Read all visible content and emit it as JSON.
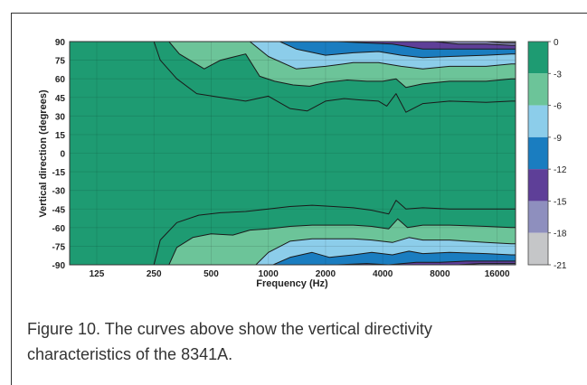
{
  "chart_data": {
    "type": "contour",
    "xlabel": "Frequency (Hz)",
    "ylabel": "Vertical direction (degrees)",
    "x_ticks": [
      "125",
      "250",
      "500",
      "1000",
      "2000",
      "4000",
      "8000",
      "16000"
    ],
    "x_tick_values": [
      125,
      250,
      500,
      1000,
      2000,
      4000,
      8000,
      16000
    ],
    "xlim": [
      90,
      20000
    ],
    "x_scale": "log",
    "y_ticks": [
      "90",
      "75",
      "60",
      "45",
      "30",
      "15",
      "0",
      "-15",
      "-30",
      "-45",
      "-60",
      "-75",
      "-90"
    ],
    "y_tick_values": [
      90,
      75,
      60,
      45,
      30,
      15,
      0,
      -15,
      -30,
      -45,
      -60,
      -75,
      -90
    ],
    "ylim": [
      -90,
      90
    ],
    "grid": true,
    "colorbar": {
      "ticks": [
        "0",
        "-3",
        "-6",
        "-9",
        "-12",
        "-15",
        "-18",
        "-21"
      ],
      "levels": [
        0,
        -3,
        -6,
        -9,
        -12,
        -15,
        -18,
        -21
      ],
      "colors": [
        "#1e9b72",
        "#6cc499",
        "#8ccdea",
        "#1a7dc0",
        "#5e3f98",
        "#8e8fbe",
        "#c5c6c8"
      ]
    },
    "contours": {
      "upper": [
        {
          "level": -3,
          "points": [
            [
              250,
              90
            ],
            [
              270,
              75
            ],
            [
              330,
              60
            ],
            [
              420,
              48
            ],
            [
              560,
              45
            ],
            [
              760,
              42
            ],
            [
              1000,
              46
            ],
            [
              1300,
              36
            ],
            [
              1600,
              34
            ],
            [
              2000,
              42
            ],
            [
              2500,
              44
            ],
            [
              3000,
              43
            ],
            [
              3800,
              42
            ],
            [
              4200,
              38
            ],
            [
              4700,
              48
            ],
            [
              5300,
              33
            ],
            [
              6500,
              40
            ],
            [
              9000,
              42
            ],
            [
              14000,
              41
            ],
            [
              19000,
              42
            ]
          ]
        },
        {
          "level": -6,
          "points": [
            [
              300,
              90
            ],
            [
              340,
              80
            ],
            [
              460,
              68
            ],
            [
              560,
              75
            ],
            [
              760,
              80
            ],
            [
              900,
              62
            ],
            [
              1080,
              58
            ],
            [
              1350,
              55
            ],
            [
              1650,
              54
            ],
            [
              2000,
              57
            ],
            [
              2600,
              59
            ],
            [
              3300,
              58
            ],
            [
              4000,
              58
            ],
            [
              4700,
              60
            ],
            [
              5300,
              53
            ],
            [
              6500,
              56
            ],
            [
              9000,
              58
            ],
            [
              14000,
              58
            ],
            [
              19000,
              60
            ]
          ]
        },
        {
          "level": -9,
          "points": [
            [
              800,
              90
            ],
            [
              1000,
              78
            ],
            [
              1400,
              68
            ],
            [
              2000,
              70
            ],
            [
              2800,
              73
            ],
            [
              3800,
              73
            ],
            [
              5000,
              70
            ],
            [
              6500,
              68
            ],
            [
              9000,
              70
            ],
            [
              14000,
              70
            ],
            [
              19000,
              72
            ]
          ]
        },
        {
          "level": -12,
          "points": [
            [
              1150,
              90
            ],
            [
              1400,
              84
            ],
            [
              2000,
              79
            ],
            [
              2800,
              81
            ],
            [
              3800,
              82
            ],
            [
              5000,
              79
            ],
            [
              6500,
              77
            ],
            [
              9000,
              78
            ],
            [
              14000,
              79
            ],
            [
              19000,
              80
            ]
          ]
        },
        {
          "level": -15,
          "points": [
            [
              2300,
              90
            ],
            [
              3200,
              89
            ],
            [
              4500,
              88
            ],
            [
              6500,
              84
            ],
            [
              9000,
              84
            ],
            [
              14000,
              84
            ],
            [
              19000,
              84
            ]
          ]
        },
        {
          "level": -18,
          "points": [
            [
              7500,
              90
            ],
            [
              10000,
              88
            ],
            [
              14000,
              88
            ],
            [
              19000,
              87
            ]
          ]
        },
        {
          "level": -21,
          "points": [
            [
              14000,
              90
            ],
            [
              17000,
              89
            ],
            [
              19000,
              89
            ]
          ]
        }
      ],
      "lower": [
        {
          "level": -3,
          "points": [
            [
              250,
              -90
            ],
            [
              270,
              -70
            ],
            [
              330,
              -56
            ],
            [
              430,
              -50
            ],
            [
              560,
              -48
            ],
            [
              760,
              -47
            ],
            [
              1000,
              -45
            ],
            [
              1300,
              -43
            ],
            [
              1700,
              -42
            ],
            [
              2200,
              -43
            ],
            [
              2800,
              -44
            ],
            [
              3500,
              -46
            ],
            [
              4300,
              -49
            ],
            [
              4700,
              -38
            ],
            [
              5300,
              -45
            ],
            [
              6500,
              -44
            ],
            [
              9000,
              -45
            ],
            [
              14000,
              -45
            ],
            [
              19000,
              -45
            ]
          ]
        },
        {
          "level": -6,
          "points": [
            [
              300,
              -90
            ],
            [
              330,
              -76
            ],
            [
              400,
              -68
            ],
            [
              500,
              -65
            ],
            [
              650,
              -66
            ],
            [
              800,
              -62
            ],
            [
              1000,
              -61
            ],
            [
              1300,
              -59
            ],
            [
              1700,
              -58
            ],
            [
              2200,
              -58
            ],
            [
              2800,
              -58
            ],
            [
              3500,
              -59
            ],
            [
              4300,
              -61
            ],
            [
              4800,
              -53
            ],
            [
              5400,
              -60
            ],
            [
              6500,
              -58
            ],
            [
              9000,
              -58
            ],
            [
              14000,
              -59
            ],
            [
              19000,
              -60
            ]
          ]
        },
        {
          "level": -9,
          "points": [
            [
              860,
              -90
            ],
            [
              1000,
              -80
            ],
            [
              1300,
              -71
            ],
            [
              1700,
              -69
            ],
            [
              2200,
              -69
            ],
            [
              2800,
              -69
            ],
            [
              3500,
              -70
            ],
            [
              4500,
              -72
            ],
            [
              5500,
              -68
            ],
            [
              6500,
              -70
            ],
            [
              9000,
              -70
            ],
            [
              14000,
              -72
            ],
            [
              19000,
              -73
            ]
          ]
        },
        {
          "level": -12,
          "points": [
            [
              1060,
              -90
            ],
            [
              1300,
              -84
            ],
            [
              1700,
              -80
            ],
            [
              2100,
              -84
            ],
            [
              2800,
              -82
            ],
            [
              3500,
              -80
            ],
            [
              4500,
              -82
            ],
            [
              5500,
              -79
            ],
            [
              6500,
              -81
            ],
            [
              9000,
              -80
            ],
            [
              14000,
              -81
            ],
            [
              19000,
              -82
            ]
          ]
        },
        {
          "level": -15,
          "points": [
            [
              2300,
              -90
            ],
            [
              3300,
              -89
            ],
            [
              4300,
              -90
            ],
            [
              6000,
              -88
            ],
            [
              8000,
              -88
            ],
            [
              11000,
              -87
            ],
            [
              14000,
              -87
            ],
            [
              19000,
              -87
            ]
          ]
        },
        {
          "level": -18,
          "points": [
            [
              10000,
              -90
            ],
            [
              13000,
              -89
            ],
            [
              16000,
              -89
            ],
            [
              19000,
              -89
            ]
          ]
        },
        {
          "level": -21,
          "points": [
            [
              17000,
              -90
            ],
            [
              19000,
              -90
            ]
          ]
        }
      ]
    }
  },
  "caption": "Figure 10. The curves above show the vertical directivity characteristics of the 8341A."
}
